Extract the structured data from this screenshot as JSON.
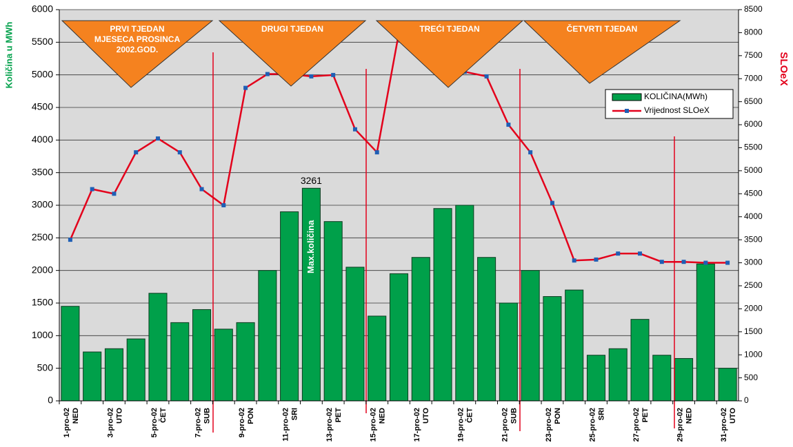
{
  "chart_data": {
    "type": "bar-line",
    "y_label": "Količina u MWh",
    "y2_label": "SLOeX",
    "categories": [
      "1-pro-02",
      null,
      "3-pro-02",
      null,
      "5-pro-02",
      null,
      "7-pro-02",
      null,
      "9-pro-02",
      null,
      "11-pro-02",
      null,
      "13-pro-02",
      null,
      "15-pro-02",
      null,
      "17-pro-02",
      null,
      "19-pro-02",
      null,
      "21-pro-02",
      null,
      "23-pro-02",
      null,
      "25-pro-02",
      null,
      "27-pro-02",
      null,
      "29-pro-02",
      null,
      "31-pro-02"
    ],
    "weekdays": [
      "NED",
      null,
      "UTO",
      null,
      "ČET",
      null,
      "SUB",
      null,
      "PON",
      null,
      "SRI",
      null,
      "PET",
      null,
      "NED",
      null,
      "UTO",
      null,
      "ČET",
      null,
      "SUB",
      null,
      "PON",
      null,
      "SRI",
      null,
      "PET",
      null,
      "NED",
      null,
      "UTO"
    ],
    "series": [
      {
        "name": "KOLIČINA(MWh)",
        "type": "bar",
        "color": "#00a04a",
        "values": [
          1450,
          750,
          800,
          950,
          1650,
          1200,
          1400,
          1100,
          1200,
          2000,
          2900,
          3261,
          2750,
          2050,
          1300,
          1950,
          2200,
          2950,
          3000,
          2200,
          1500,
          2000,
          1600,
          1700,
          700,
          800,
          1250,
          700,
          650,
          2100,
          500
        ]
      },
      {
        "name": "Vrijednost SLOeX",
        "type": "line",
        "axis": "y2",
        "color": "#e3001b",
        "marker_color": "#1f5fb5",
        "values": [
          3500,
          4600,
          4500,
          5400,
          5700,
          5400,
          4600,
          4250,
          6800,
          7100,
          7100,
          7050,
          7080,
          5900,
          5400,
          8000,
          7600,
          7150,
          7150,
          7050,
          6000,
          5400,
          4300,
          3050,
          3070,
          3200,
          3200,
          3020,
          3020,
          3000,
          3000
        ]
      }
    ],
    "peak_label_index": 11,
    "bar_annotation": "Max.količina",
    "week_annotations": [
      [
        "PRVI TJEDAN",
        "MJESECA PROSINCA",
        "2002.GOD."
      ],
      [
        "DRUGI TJEDAN"
      ],
      [
        "TREĆI TJEDAN"
      ],
      [
        "ČETVRTI TJEDAN"
      ]
    ],
    "ylim": [
      0,
      6000
    ],
    "yticks": [
      0,
      500,
      1000,
      1500,
      2000,
      2500,
      3000,
      3500,
      4000,
      4500,
      5000,
      5500,
      6000
    ],
    "y2lim": [
      0,
      8500
    ],
    "y2ticks": [
      0,
      500,
      1000,
      1500,
      2000,
      2500,
      3000,
      3500,
      4000,
      4500,
      5000,
      5500,
      6000,
      6500,
      7000,
      7500,
      8000,
      8500
    ],
    "grid": true,
    "legend": "upper right"
  }
}
